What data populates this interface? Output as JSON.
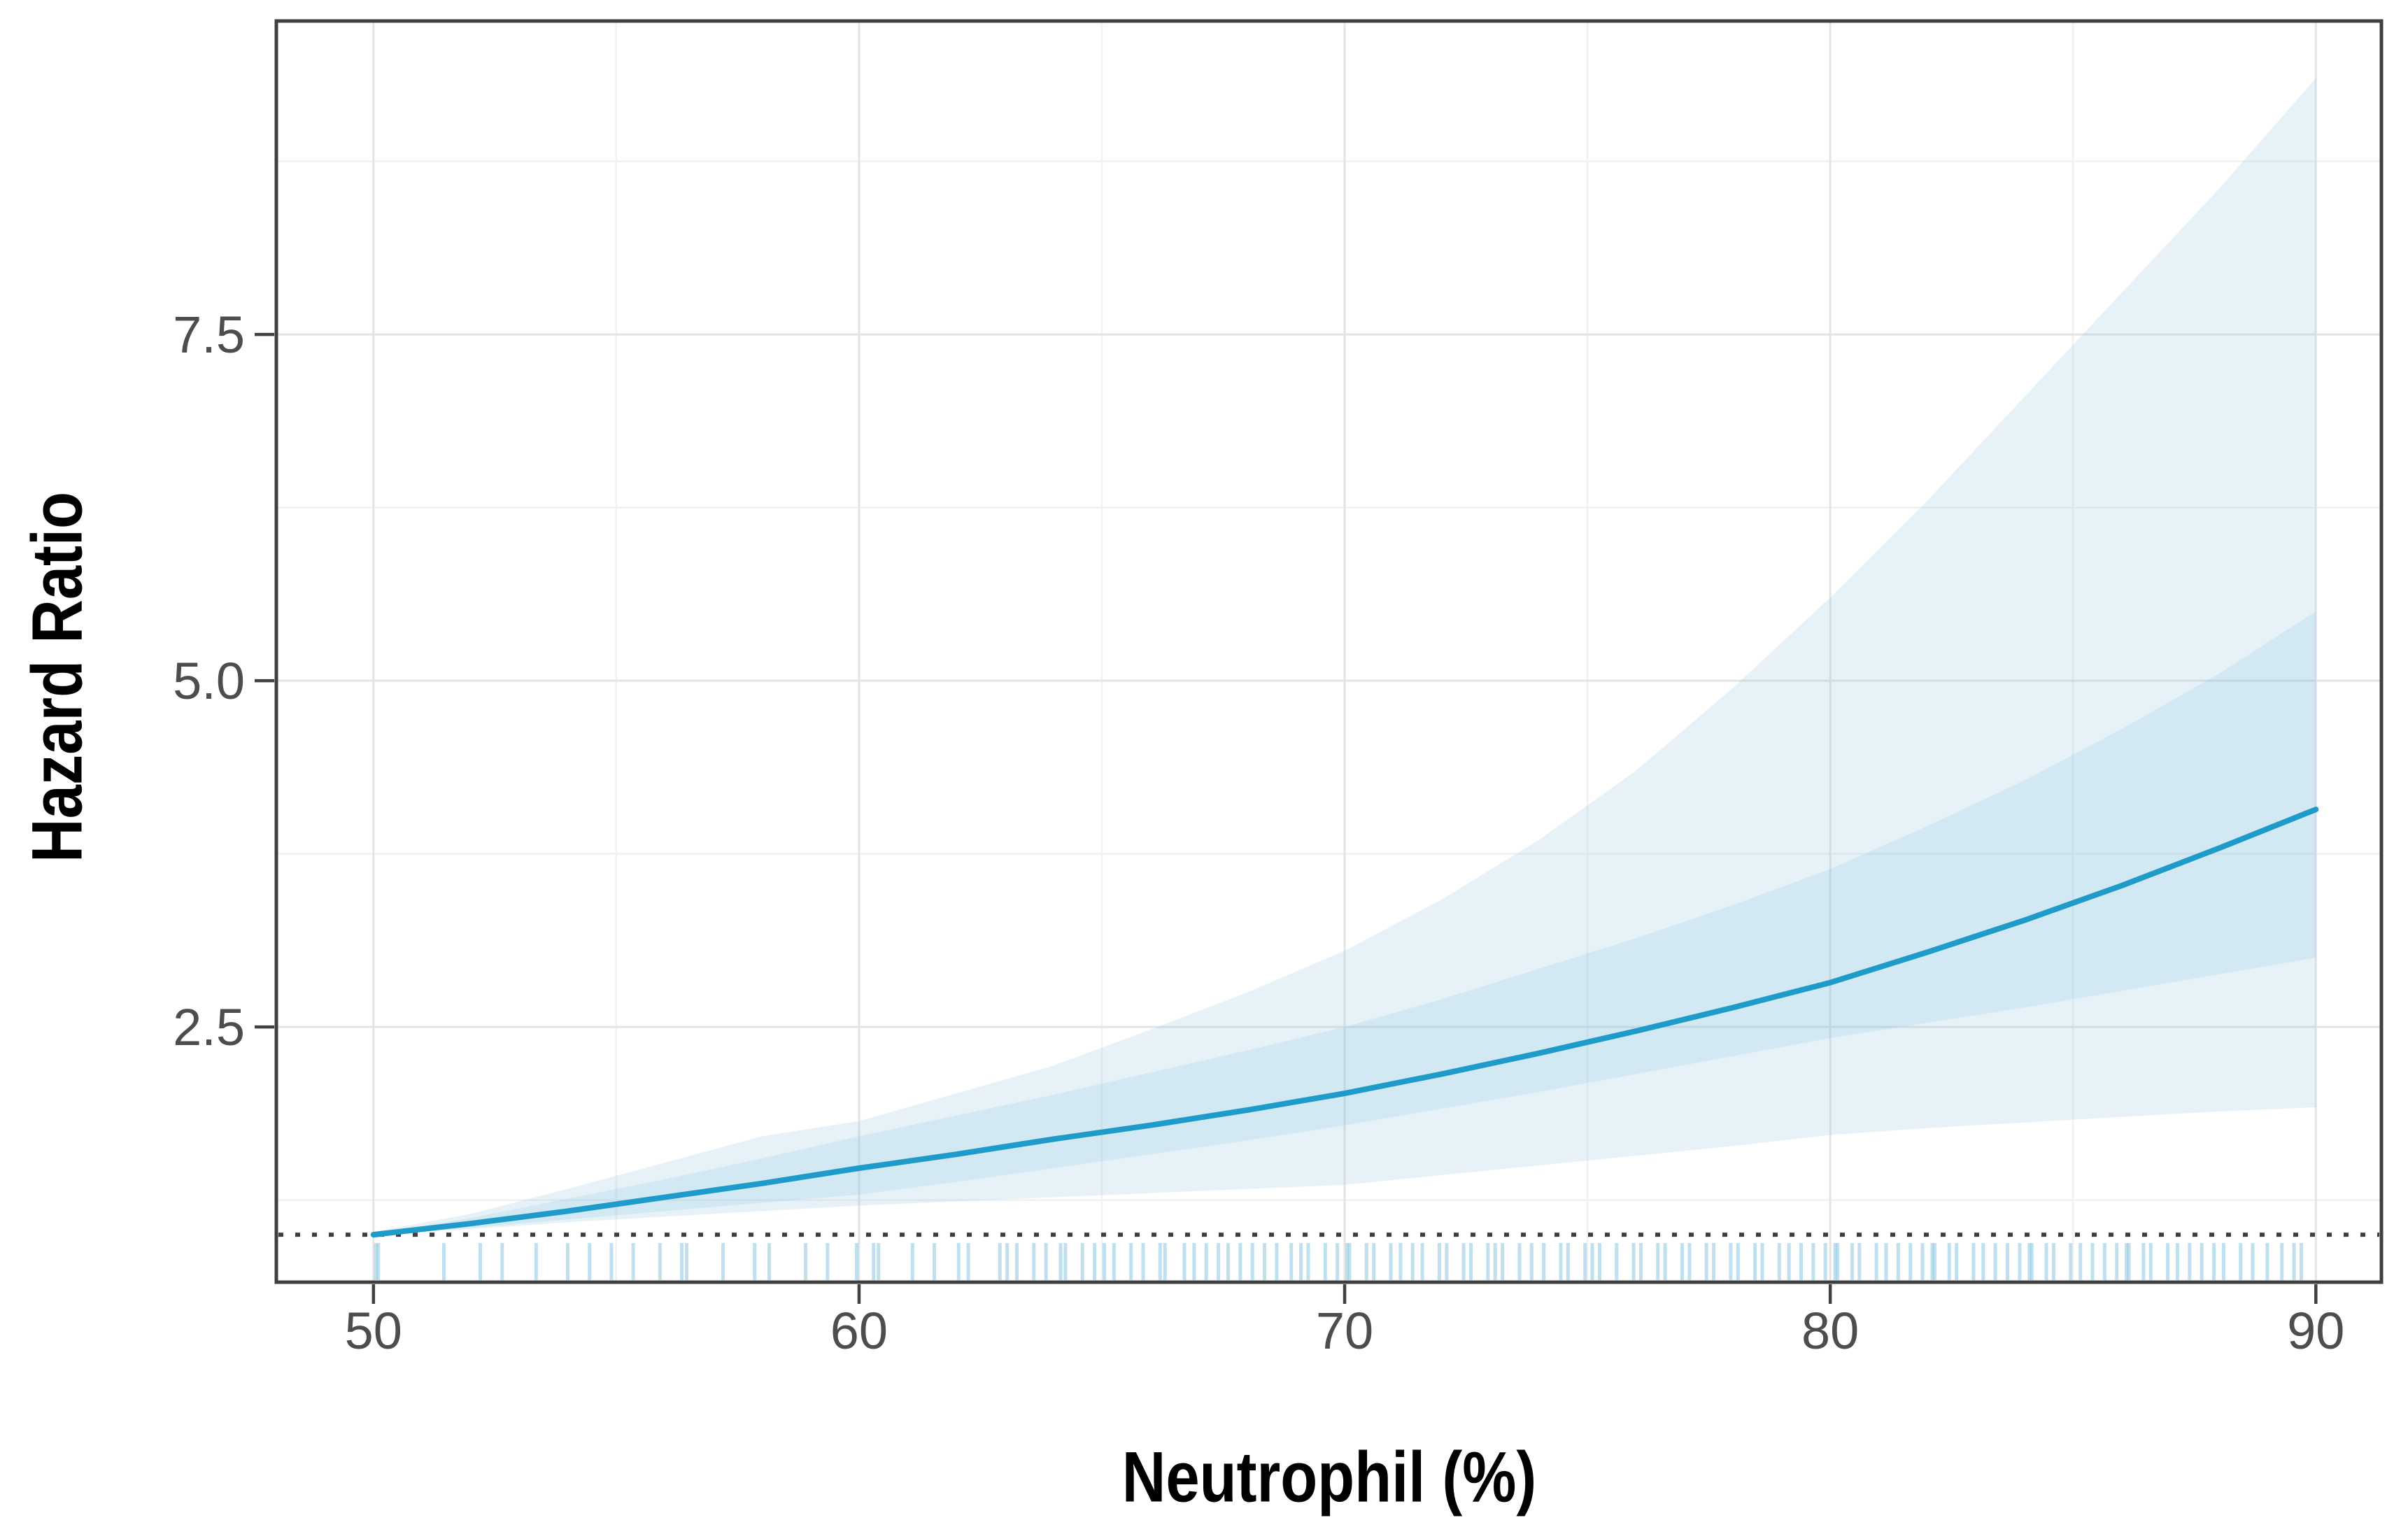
{
  "figure": {
    "background": "#ffffff",
    "plot_type_note": "hazard ratio spline curve with inner and outer confidence bands, rug plot and reference line"
  },
  "colors": {
    "curve": "#1e9bc9",
    "band_fill": "rgba(141,197,225,0.22)",
    "rug": "rgba(125,193,224,0.5)",
    "grid_major": "#e4e4e4",
    "grid_minor": "#f1f1f1",
    "panel_border": "#3f3f3f",
    "reference_line": "#3f3f3f",
    "tick_mark": "#404040",
    "tick_label": "#4d4d4d",
    "axis_title": "#000000"
  },
  "chart_data": {
    "type": "line",
    "title": "",
    "xlabel": "Neutrophil (%)",
    "ylabel": "Hazard Ratio",
    "grid": "major+minor",
    "legend": "none",
    "xlim": [
      48.0,
      91.35
    ],
    "ylim": [
      0.657,
      9.763
    ],
    "reference_line_y": 1.0,
    "x_ticks": {
      "values": [
        50,
        60,
        70,
        80,
        90
      ],
      "labels": [
        "50",
        "60",
        "70",
        "80",
        "90"
      ]
    },
    "y_ticks": {
      "values": [
        2.5,
        5.0,
        7.5
      ],
      "labels": [
        "2.5",
        "5.0",
        "7.5"
      ]
    },
    "x_minor": [
      55,
      65,
      75,
      85
    ],
    "y_minor": [
      1.25,
      3.75,
      6.25,
      8.75
    ],
    "x": [
      50,
      52,
      54,
      56,
      58,
      60,
      62,
      64,
      66,
      68,
      70,
      72,
      74,
      76,
      78,
      80,
      82,
      84,
      86,
      88,
      90
    ],
    "series": [
      {
        "name": "hazard_ratio",
        "role": "center",
        "values": [
          1.0,
          1.08,
          1.17,
          1.27,
          1.37,
          1.48,
          1.58,
          1.69,
          1.79,
          1.9,
          2.02,
          2.16,
          2.31,
          2.47,
          2.64,
          2.82,
          3.04,
          3.27,
          3.52,
          3.79,
          4.07
        ]
      },
      {
        "name": "ci_inner_upper",
        "role": "band_inner_hi",
        "values": [
          1.0,
          1.12,
          1.26,
          1.4,
          1.55,
          1.71,
          1.86,
          2.01,
          2.17,
          2.33,
          2.5,
          2.7,
          2.92,
          3.14,
          3.38,
          3.64,
          3.95,
          4.28,
          4.65,
          5.05,
          5.5
        ]
      },
      {
        "name": "ci_inner_lower",
        "role": "band_inner_lo",
        "values": [
          1.0,
          1.05,
          1.11,
          1.17,
          1.23,
          1.29,
          1.38,
          1.48,
          1.58,
          1.68,
          1.79,
          1.91,
          2.03,
          2.16,
          2.29,
          2.42,
          2.53,
          2.64,
          2.76,
          2.88,
          3.0
        ]
      },
      {
        "name": "ci_outer_upper",
        "role": "band_outer_hi",
        "values": [
          1.02,
          1.15,
          1.33,
          1.52,
          1.71,
          1.82,
          2.02,
          2.22,
          2.48,
          2.75,
          3.05,
          3.42,
          3.85,
          4.35,
          4.95,
          5.6,
          6.3,
          7.05,
          7.8,
          8.55,
          9.35
        ]
      },
      {
        "name": "ci_outer_lower",
        "role": "band_outer_lo",
        "values": [
          1.0,
          1.04,
          1.09,
          1.13,
          1.17,
          1.21,
          1.24,
          1.27,
          1.3,
          1.33,
          1.36,
          1.43,
          1.5,
          1.57,
          1.64,
          1.72,
          1.77,
          1.81,
          1.85,
          1.89,
          1.92
        ]
      }
    ],
    "rug_x": [
      50.05,
      50.1,
      51.45,
      52.2,
      52.65,
      53.35,
      54.0,
      54.45,
      54.9,
      55.35,
      55.9,
      56.35,
      56.45,
      57.2,
      57.85,
      58.15,
      58.9,
      59.35,
      59.95,
      60.3,
      60.4,
      61.1,
      61.55,
      62.05,
      62.25,
      62.9,
      63.05,
      63.25,
      63.6,
      63.85,
      64.15,
      64.25,
      64.6,
      64.85,
      65.05,
      65.25,
      65.6,
      65.85,
      66.2,
      66.3,
      66.7,
      66.9,
      67.15,
      67.4,
      67.6,
      67.85,
      68.1,
      68.35,
      68.6,
      68.9,
      69.1,
      69.25,
      69.6,
      69.85,
      70.05,
      70.1,
      70.45,
      70.6,
      70.95,
      71.15,
      71.4,
      71.6,
      71.95,
      72.1,
      72.45,
      72.6,
      72.95,
      73.1,
      73.25,
      73.6,
      73.85,
      74.1,
      74.45,
      74.6,
      74.95,
      75.1,
      75.25,
      75.6,
      75.95,
      76.1,
      76.45,
      76.6,
      76.95,
      77.1,
      77.45,
      77.6,
      77.95,
      78.1,
      78.45,
      78.6,
      78.95,
      79.15,
      79.4,
      79.65,
      79.9,
      80.1,
      80.15,
      80.45,
      80.6,
      80.95,
      81.15,
      81.4,
      81.65,
      81.9,
      82.1,
      82.15,
      82.45,
      82.6,
      82.95,
      83.15,
      83.4,
      83.65,
      83.9,
      84.1,
      84.15,
      84.45,
      84.6,
      84.95,
      85.15,
      85.4,
      85.65,
      85.9,
      86.1,
      86.15,
      86.45,
      86.6,
      86.95,
      87.15,
      87.4,
      87.65,
      87.9,
      88.1,
      88.45,
      88.7,
      89.0,
      89.3,
      89.55,
      89.7
    ]
  }
}
